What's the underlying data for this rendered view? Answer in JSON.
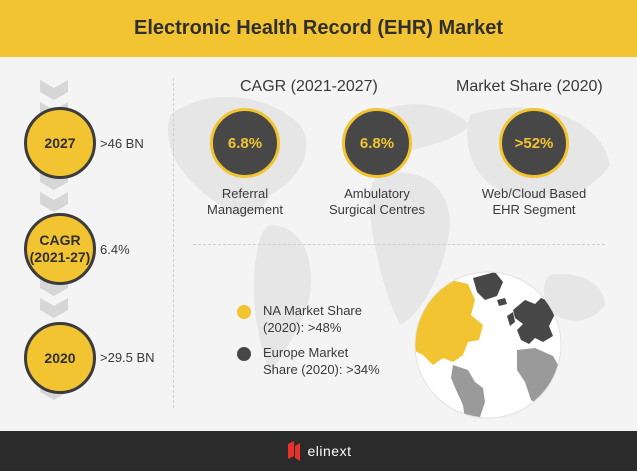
{
  "header": {
    "title": "Electronic Health Record (EHR) Market"
  },
  "timeline": [
    {
      "label": "2027",
      "value": ">46 BN"
    },
    {
      "label": "CAGR\n(2021-27)",
      "value": "6.4%"
    },
    {
      "label": "2020",
      "value": ">29.5 BN"
    }
  ],
  "cagr_section": {
    "title": "CAGR (2021-2027)",
    "items": [
      {
        "value": "6.8%",
        "label": "Referral\nManagement"
      },
      {
        "value": "6.8%",
        "label": "Ambulatory\nSurgical Centres"
      }
    ]
  },
  "share_section": {
    "title": "Market Share (2020)",
    "item": {
      "value": ">52%",
      "label": "Web/Cloud Based\nEHR Segment"
    }
  },
  "legend": [
    {
      "text": "NA Market Share\n(2020): >48%",
      "color": "#f3c431"
    },
    {
      "text": "Europe Market\nShare (2020): >34%",
      "color": "#474747"
    }
  ],
  "footer": {
    "brand": "elinext",
    "brand_color": "#e5332a"
  },
  "colors": {
    "accent": "#f3c431",
    "dark": "#474747"
  },
  "icons": [
    "globe-icon",
    "world-map-icon",
    "chevron-icon",
    "elinext-logo-icon"
  ]
}
